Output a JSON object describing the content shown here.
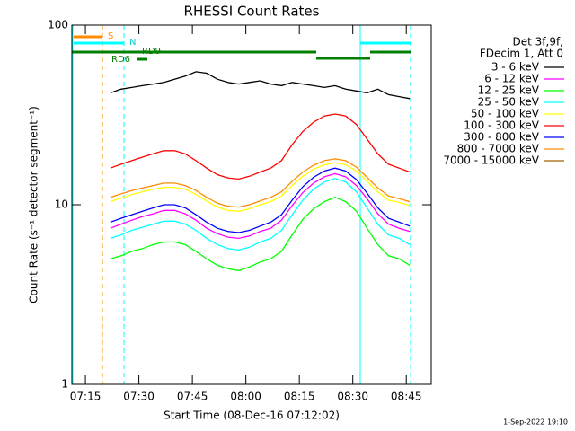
{
  "chart_data": {
    "type": "line",
    "title": "RHESSI Count Rates",
    "x_label": "Start Time (08-Dec-16 07:12:02)",
    "y_label": "Count Rate (s⁻¹ detector segment⁻¹)",
    "log_y": true,
    "xlim": [
      431.2,
      532
    ],
    "ylim": [
      1,
      100
    ],
    "xticks": [
      {
        "value": 435,
        "label": "07:15"
      },
      {
        "value": 450,
        "label": "07:30"
      },
      {
        "value": 465,
        "label": "07:45"
      },
      {
        "value": 480,
        "label": "08:00"
      },
      {
        "value": 495,
        "label": "08:15"
      },
      {
        "value": 510,
        "label": "08:30"
      },
      {
        "value": 525,
        "label": "08:45"
      }
    ],
    "yticks": [
      1,
      10,
      100
    ],
    "legend_header": [
      "Det 3f,9f,",
      "FDecim 1, Att 0"
    ],
    "annotations": [
      "S",
      "N",
      "RD6",
      "RD9"
    ],
    "timestamp": "1-Sep-2022 19:10",
    "x": [
      442,
      445,
      448,
      451,
      454,
      457,
      460,
      463,
      466,
      469,
      472,
      475,
      478,
      481,
      484,
      487,
      490,
      493,
      496,
      499,
      502,
      505,
      508,
      511,
      514,
      517,
      520,
      523,
      526
    ],
    "series": [
      {
        "name": "3 - 6 keV",
        "color": "#000000",
        "values": [
          42,
          44,
          45,
          46,
          47,
          48,
          50,
          52,
          55,
          54,
          50,
          48,
          47,
          48,
          49,
          47,
          46,
          48,
          47,
          46,
          45,
          46,
          44,
          43,
          42,
          44,
          41,
          40,
          39
        ]
      },
      {
        "name": "6 - 12 keV",
        "color": "#ff00ff",
        "values": [
          7.4,
          7.8,
          8.2,
          8.6,
          8.9,
          9.3,
          9.3,
          8.9,
          8.2,
          7.4,
          6.9,
          6.6,
          6.5,
          6.7,
          7.1,
          7.4,
          8.2,
          9.9,
          11.7,
          13.2,
          14.3,
          14.9,
          14.3,
          12.8,
          10.8,
          8.9,
          7.8,
          7.4,
          7.1
        ]
      },
      {
        "name": "12 - 25 keV",
        "color": "#00ff00",
        "values": [
          5,
          5.2,
          5.5,
          5.7,
          6,
          6.2,
          6.2,
          6,
          5.5,
          5,
          4.6,
          4.4,
          4.3,
          4.5,
          4.8,
          5,
          5.5,
          6.8,
          8.3,
          9.5,
          10.4,
          11,
          10.4,
          9.2,
          7.4,
          6,
          5.2,
          5,
          4.6
        ]
      },
      {
        "name": "25 - 50 keV",
        "color": "#00ffff",
        "values": [
          6.5,
          6.8,
          7.2,
          7.5,
          7.8,
          8.1,
          8.1,
          7.8,
          7.2,
          6.5,
          6,
          5.7,
          5.6,
          5.8,
          6.2,
          6.5,
          7.2,
          8.8,
          10.6,
          12.2,
          13.4,
          14,
          13.4,
          11.8,
          9.6,
          7.8,
          6.8,
          6.5,
          6
        ]
      },
      {
        "name": "50 - 100 keV",
        "color": "#ffff00",
        "values": [
          10.4,
          10.9,
          11.4,
          11.8,
          12.2,
          12.5,
          12.5,
          12.2,
          11.4,
          10.5,
          9.7,
          9.3,
          9.2,
          9.5,
          10,
          10.4,
          11.2,
          12.8,
          14.4,
          15.8,
          16.7,
          17.1,
          16.7,
          15.4,
          13.5,
          11.8,
          10.6,
          10.3,
          9.9
        ]
      },
      {
        "name": "100 - 300 keV",
        "color": "#ff0000",
        "values": [
          16,
          16.8,
          17.6,
          18.4,
          19.2,
          20,
          20,
          19.2,
          17.6,
          16,
          14.7,
          14.1,
          13.9,
          14.4,
          15.2,
          16,
          17.6,
          21.6,
          25.6,
          28.8,
          31.2,
          32,
          31.2,
          28,
          23.2,
          19.2,
          16.8,
          16,
          15.2
        ]
      },
      {
        "name": "300 - 800 keV",
        "color": "#0000ff",
        "values": [
          8,
          8.4,
          8.8,
          9.2,
          9.6,
          10,
          10,
          9.6,
          8.8,
          8,
          7.4,
          7.1,
          7,
          7.2,
          7.6,
          8,
          8.8,
          10.6,
          12.6,
          14.2,
          15.4,
          16,
          15.4,
          13.8,
          11.6,
          9.6,
          8.4,
          8,
          7.6
        ]
      },
      {
        "name": "800 - 7000 keV",
        "color": "#ff8c00",
        "values": [
          11,
          11.5,
          12,
          12.4,
          12.8,
          13.2,
          13.2,
          12.8,
          12,
          11,
          10.2,
          9.8,
          9.7,
          10,
          10.5,
          11,
          11.8,
          13.5,
          15.2,
          16.6,
          17.6,
          18,
          17.6,
          16.2,
          14.2,
          12.4,
          11.2,
          10.8,
          10.4
        ]
      },
      {
        "name": "7000 - 15000 keV",
        "color": "#a06000",
        "values": [
          null,
          null,
          null,
          null,
          null,
          null,
          null,
          null,
          null,
          null,
          null,
          null,
          null,
          null,
          null,
          null,
          null,
          null,
          null,
          null,
          null,
          null,
          null,
          null,
          null,
          null,
          null,
          null,
          null
        ]
      }
    ]
  }
}
